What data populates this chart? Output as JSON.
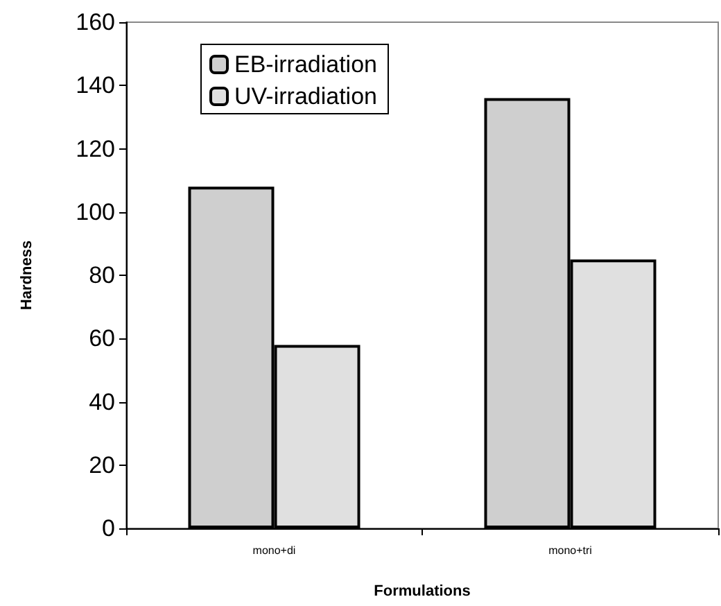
{
  "chart_data": {
    "type": "bar",
    "xlabel": "Formulations",
    "ylabel": "Hardness",
    "categories": [
      "mono+di",
      "mono+tri"
    ],
    "series": [
      {
        "name": "EB-irradiation",
        "color": "#cfcfcf",
        "values": [
          108,
          136
        ]
      },
      {
        "name": "UV-irradiation",
        "color": "#e0e0e0",
        "values": [
          58,
          85
        ]
      }
    ],
    "ylim": [
      0,
      160
    ],
    "yticks": [
      0,
      20,
      40,
      60,
      80,
      100,
      120,
      140,
      160
    ],
    "grid": false,
    "legend": "top left"
  }
}
